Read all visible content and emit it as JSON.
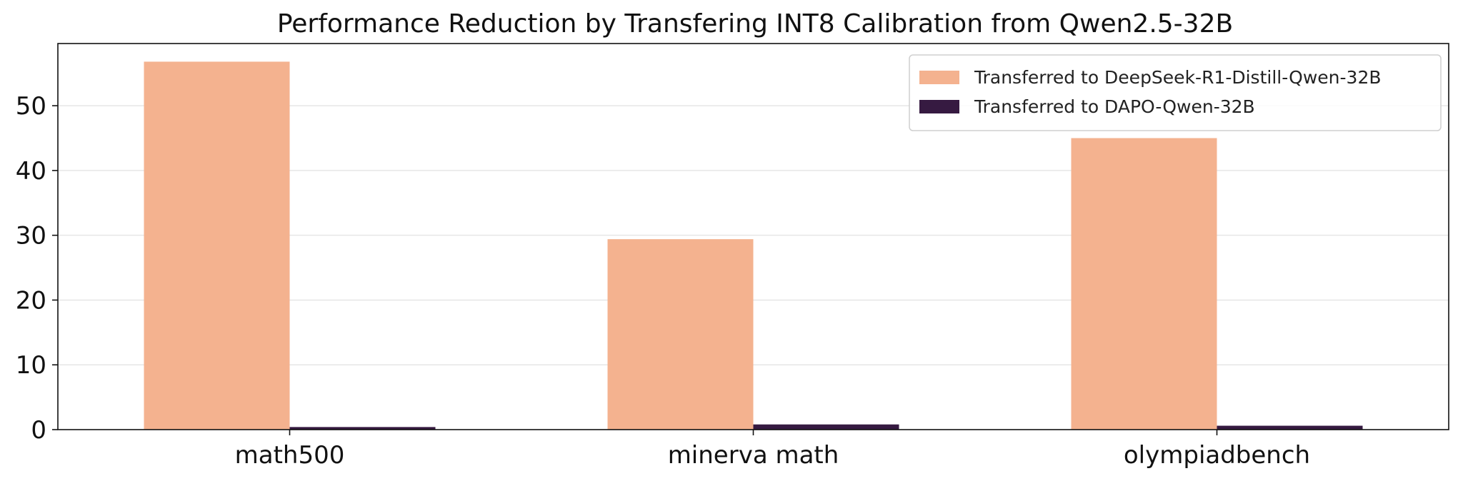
{
  "chart_data": {
    "type": "bar",
    "title": "Performance Reduction by Transfering INT8 Calibration from Qwen2.5-32B",
    "xlabel": "",
    "ylabel": "",
    "categories": [
      "math500",
      "minerva math",
      "olympiadbench"
    ],
    "series": [
      {
        "name": "Transferred to DeepSeek-R1-Distill-Qwen-32B",
        "values": [
          56.8,
          29.4,
          45.0
        ],
        "color": "#f4b28f"
      },
      {
        "name": "Transferred to DAPO-Qwen-32B",
        "values": [
          0.4,
          0.8,
          0.6
        ],
        "color": "#361a41"
      }
    ],
    "ylim": [
      0,
      59.6
    ],
    "yticks": [
      0,
      10,
      20,
      30,
      40,
      50
    ],
    "grid": "y",
    "legend_position": "top-right"
  }
}
